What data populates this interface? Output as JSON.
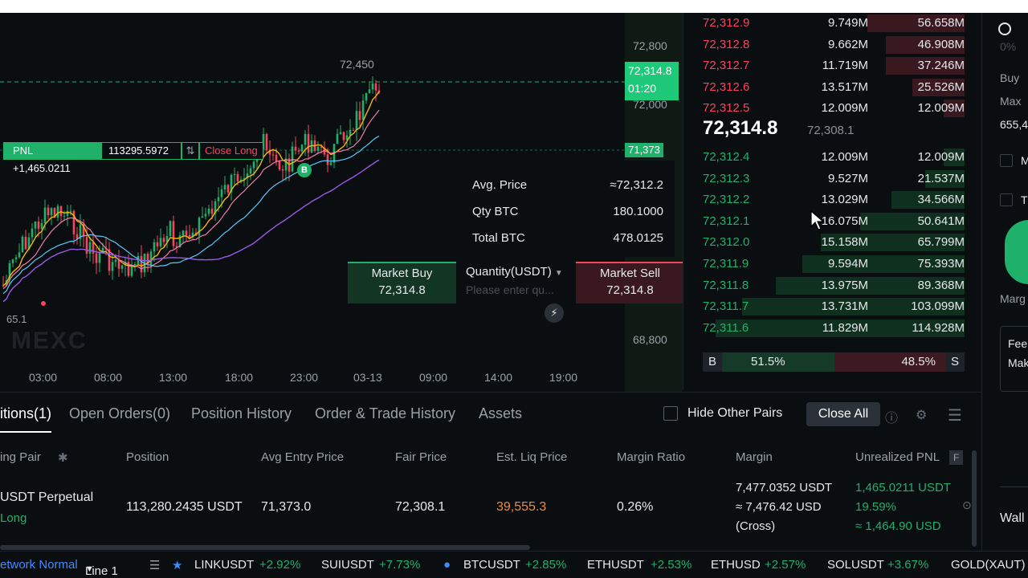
{
  "chart": {
    "y_labels": [
      "72,800",
      "72,000",
      "68,800"
    ],
    "x_labels": [
      "03:00",
      "08:00",
      "13:00",
      "18:00",
      "23:00",
      "03-13",
      "09:00",
      "14:00",
      "19:00"
    ],
    "current_price": "72,314.8",
    "countdown": "01:20",
    "entry_tag": "71,373",
    "high_label": "72,450",
    "low_label": "65.1",
    "watermark": "MEXC",
    "buy_marker": "B",
    "pnl_label": "PNL +1,465.0211",
    "position_size": "113295.5972",
    "switch_icon": "⇅",
    "close_long": "Close Long"
  },
  "trade_panel": {
    "avg_price_label": "Avg. Price",
    "avg_price_value": "≈72,312.2",
    "qty_label": "Qty BTC",
    "qty_value": "180.1000",
    "total_label": "Total BTC",
    "total_value": "478.0125",
    "market_buy_label": "Market Buy",
    "market_buy_price": "72,314.8",
    "quantity_label": "Quantity(USDT)",
    "quantity_placeholder": "Please enter qu...",
    "market_sell_label": "Market Sell",
    "market_sell_price": "72,314.8",
    "close_icon": "✕",
    "bolt_icon": "⚡"
  },
  "orderbook": {
    "asks": [
      {
        "price": "72,312.9",
        "qty": "9.749M",
        "total": "56.658M",
        "depth": 0.37
      },
      {
        "price": "72,312.8",
        "qty": "9.662M",
        "total": "46.908M",
        "depth": 0.3
      },
      {
        "price": "72,312.7",
        "qty": "11.719M",
        "total": "37.246M",
        "depth": 0.3
      },
      {
        "price": "72,312.6",
        "qty": "13.517M",
        "total": "25.526M",
        "depth": 0.2
      },
      {
        "price": "72,312.5",
        "qty": "12.009M",
        "total": "12.009M",
        "depth": 0.08
      }
    ],
    "mid_price": "72,314.8",
    "mark_price": "72,308.1",
    "bids": [
      {
        "price": "72,312.4",
        "qty": "12.009M",
        "total": "12.009M",
        "depth": 0.08
      },
      {
        "price": "72,312.3",
        "qty": "9.527M",
        "total": "21.537M",
        "depth": 0.15
      },
      {
        "price": "72,312.2",
        "qty": "13.029M",
        "total": "34.566M",
        "depth": 0.28
      },
      {
        "price": "72,312.1",
        "qty": "16.075M",
        "total": "50.641M",
        "depth": 0.4
      },
      {
        "price": "72,312.0",
        "qty": "15.158M",
        "total": "65.799M",
        "depth": 0.55
      },
      {
        "price": "72,311.9",
        "qty": "9.594M",
        "total": "75.393M",
        "depth": 0.62
      },
      {
        "price": "72,311.8",
        "qty": "13.975M",
        "total": "89.368M",
        "depth": 0.72
      },
      {
        "price": "72,311.7",
        "qty": "13.731M",
        "total": "103.099M",
        "depth": 0.85
      },
      {
        "price": "72,311.6",
        "qty": "11.829M",
        "total": "114.928M",
        "depth": 0.95
      }
    ],
    "buy_ratio_label": "B",
    "buy_ratio": "51.5%",
    "sell_ratio": "48.5%",
    "sell_ratio_label": "S"
  },
  "right_panel": {
    "percent": "0%",
    "buy_label": "Buy",
    "max_label": "Max",
    "max_value": "655,4",
    "option_m": "M",
    "option_t": "T",
    "margin_label": "Marg",
    "fee_label": "Fee",
    "maker_label": "Mak",
    "wallet_label": "Wall"
  },
  "positions": {
    "tabs": [
      "itions(1)",
      "Open Orders(0)",
      "Position History",
      "Order & Trade History",
      "Assets"
    ],
    "hide_other_pairs": "Hide Other Pairs",
    "close_all": "Close All",
    "headers": [
      "ing Pair",
      "Position",
      "Avg Entry Price",
      "Fair Price",
      "Est. Liq Price",
      "Margin Ratio",
      "Margin",
      "Unrealized PNL"
    ],
    "header_f": "F",
    "pin_icon": "✱",
    "row": {
      "pair": "USDT  Perpetual",
      "side": "Long",
      "position": "113,280.2435 USDT",
      "avg_entry": "71,373.0",
      "fair_price": "72,308.1",
      "liq_price": "39,555.3",
      "margin_ratio": "0.26%",
      "margin_line1": "7,477.0352 USDT",
      "margin_line2": "≈ 7,476.42 USD",
      "margin_line3": "(Cross)",
      "pnl_line1": "1,465.0211 USDT",
      "pnl_line2": "19.59%",
      "pnl_line3": "≈ 1,464.90 USD"
    }
  },
  "ticker": {
    "status": "etwork Normal",
    "line": "Line 1",
    "items": [
      {
        "symbol": "LINKUSDT",
        "change": "+2.92%"
      },
      {
        "symbol": "SUIUSDT",
        "change": "+7.73%"
      },
      {
        "symbol": "BTCUSDT",
        "change": "+2.85%"
      },
      {
        "symbol": "ETHUSDT",
        "change": "+2.53%"
      },
      {
        "symbol": "ETHUSD",
        "change": "+2.57%"
      },
      {
        "symbol": "SOLUSDT",
        "change": "+3.67%"
      },
      {
        "symbol": "GOLD(XAUT)",
        "change": ""
      }
    ]
  },
  "colors": {
    "background": "#0b0e11",
    "up": "#1fb06a",
    "down": "#f6465d",
    "accent_blue": "#3d8bff",
    "liq_orange": "#f0883e"
  }
}
